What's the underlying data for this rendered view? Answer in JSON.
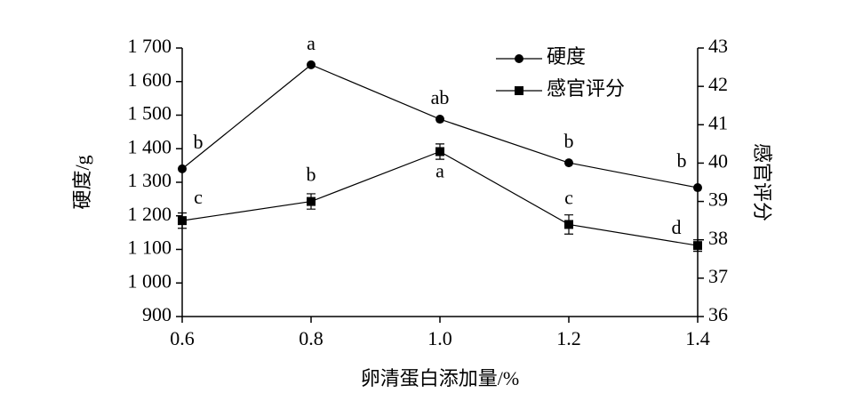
{
  "chart_data": {
    "type": "line",
    "x_label": "卵清蛋白添加量/%",
    "y_label": "硬度/g",
    "y2_label": "感官评分",
    "x": [
      0.6,
      0.8,
      1.0,
      1.2,
      1.4
    ],
    "xlim": [
      0.6,
      1.4
    ],
    "xticks": [
      0.6,
      0.8,
      {
        "value": 1.0,
        "label": "1.0"
      },
      1.2,
      1.4
    ],
    "ylim": [
      900,
      1700
    ],
    "yticks": [
      900,
      {
        "value": 1000,
        "label": "1 000"
      },
      {
        "value": 1100,
        "label": "1 100"
      },
      {
        "value": 1200,
        "label": "1 200"
      },
      {
        "value": 1300,
        "label": "1 300"
      },
      {
        "value": 1400,
        "label": "1 400"
      },
      {
        "value": 1500,
        "label": "1 500"
      },
      {
        "value": 1600,
        "label": "1 600"
      },
      {
        "value": 1700,
        "label": "1 700"
      }
    ],
    "y2lim": [
      36,
      43
    ],
    "y2ticks": [
      36,
      37,
      38,
      39,
      40,
      41,
      42,
      43
    ],
    "legend": "top-right",
    "series": [
      {
        "name": "硬度",
        "color": "#000000",
        "marker": "circle",
        "values": [
          1340,
          1650,
          1488,
          1358,
          1284
        ],
        "significance": [
          "b",
          "a",
          "ab",
          "b",
          "b"
        ]
      },
      {
        "name": "感官评分",
        "color": "#000000",
        "marker": "square",
        "axis": "y2",
        "values": [
          38.5,
          39.0,
          40.3,
          38.4,
          37.85
        ],
        "errors": [
          0.2,
          0.2,
          0.2,
          0.25,
          0.15
        ],
        "significance": [
          "c",
          "b",
          "a",
          "c",
          "d"
        ]
      }
    ]
  }
}
